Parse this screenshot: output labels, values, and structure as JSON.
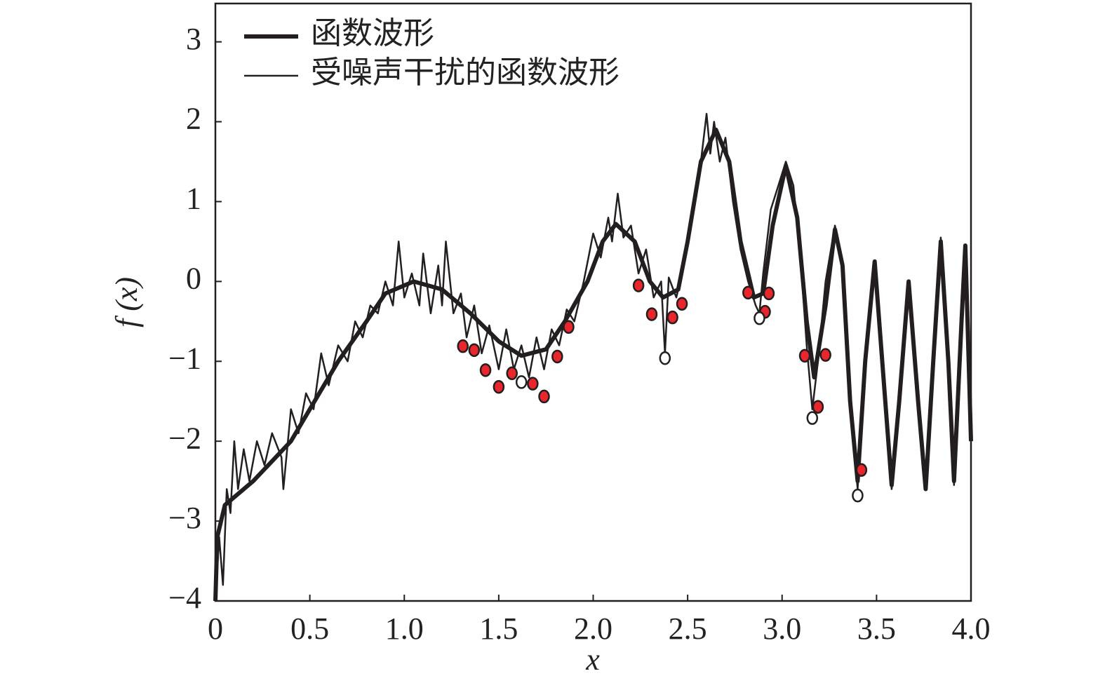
{
  "chart_data": {
    "type": "line",
    "xlabel": "x",
    "ylabel": "f (x)",
    "xlim": [
      0,
      4
    ],
    "ylim": [
      -4,
      3.48
    ],
    "xticks": [
      0,
      0.5,
      {
        "value": 1,
        "label": "1.0"
      },
      1.5,
      {
        "value": 2,
        "label": "2.0"
      },
      2.5,
      {
        "value": 3,
        "label": "3.0"
      },
      3.5,
      {
        "value": 4,
        "label": "4.0"
      }
    ],
    "yticks": [
      {
        "value": -4,
        "label": "−4"
      },
      {
        "value": -3,
        "label": "−3"
      },
      {
        "value": -2,
        "label": "−2"
      },
      {
        "value": -1,
        "label": "−1"
      },
      0,
      1,
      2,
      3
    ],
    "legend": "upper left",
    "series": [
      {
        "name": "函数波形",
        "color": "#231f20",
        "width": 6,
        "x": [
          0,
          0.01,
          0.05,
          0.2,
          0.4,
          0.5,
          0.65,
          0.8,
          0.9,
          1.05,
          1.2,
          1.35,
          1.5,
          1.62,
          1.75,
          1.85,
          1.97,
          2.05,
          2.12,
          2.22,
          2.3,
          2.37,
          2.45,
          2.5,
          2.57,
          2.65,
          2.72,
          2.78,
          2.85,
          2.9,
          2.95,
          3.02,
          3.08,
          3.13,
          3.17,
          3.23,
          3.28,
          3.32,
          3.36,
          3.4,
          3.44,
          3.49,
          3.53,
          3.58,
          3.62,
          3.67,
          3.72,
          3.76,
          3.8,
          3.84,
          3.88,
          3.91,
          3.95,
          3.97,
          4.0
        ],
        "values": [
          -4,
          -3.2,
          -2.8,
          -2.5,
          -2,
          -1.6,
          -1,
          -0.5,
          -0.15,
          0,
          -0.1,
          -0.4,
          -0.75,
          -0.93,
          -0.85,
          -0.5,
          0,
          0.5,
          0.72,
          0.5,
          0,
          -0.2,
          -0.1,
          0.5,
          1.5,
          1.9,
          1.5,
          0.5,
          -0.2,
          -0.15,
          0.7,
          1.45,
          0.8,
          -0.5,
          -1.2,
          -0.3,
          0.65,
          0.2,
          -1.5,
          -2.5,
          -1,
          0.25,
          -1,
          -2.55,
          -1.5,
          0,
          -1.5,
          -2.6,
          -1,
          0.5,
          -1,
          -2.5,
          -0.5,
          0.45,
          -2
        ]
      },
      {
        "name": "受噪声干扰的函数波形",
        "color": "#231f20",
        "width": 2.5,
        "x": [
          0,
          0.02,
          0.04,
          0.06,
          0.08,
          0.1,
          0.12,
          0.15,
          0.18,
          0.22,
          0.26,
          0.3,
          0.35,
          0.36,
          0.4,
          0.44,
          0.48,
          0.52,
          0.56,
          0.6,
          0.65,
          0.7,
          0.74,
          0.78,
          0.82,
          0.86,
          0.9,
          0.94,
          0.97,
          1.0,
          1.04,
          1.08,
          1.1,
          1.14,
          1.18,
          1.2,
          1.22,
          1.26,
          1.3,
          1.33,
          1.37,
          1.41,
          1.45,
          1.5,
          1.54,
          1.58,
          1.62,
          1.66,
          1.7,
          1.74,
          1.78,
          1.82,
          1.86,
          1.9,
          1.95,
          2.0,
          2.04,
          2.08,
          2.1,
          2.13,
          2.16,
          2.2,
          2.24,
          2.28,
          2.32,
          2.36,
          2.38,
          2.4,
          2.44,
          2.48,
          2.52,
          2.56,
          2.6,
          2.62,
          2.64,
          2.67,
          2.7,
          2.74,
          2.78,
          2.82,
          2.86,
          2.88,
          2.9,
          2.94,
          2.98,
          3.02,
          3.06,
          3.1,
          3.13,
          3.16,
          3.19,
          3.23,
          3.28,
          3.32,
          3.36,
          3.4,
          3.44,
          3.49,
          3.53,
          3.58,
          3.62,
          3.67,
          3.72,
          3.76,
          3.8,
          3.84,
          3.88,
          3.91,
          3.95,
          3.97,
          4.0
        ],
        "values": [
          -4,
          -3.2,
          -3.8,
          -2.6,
          -2.9,
          -2,
          -2.6,
          -2.1,
          -2.5,
          -2,
          -2.3,
          -1.9,
          -2.2,
          -2.6,
          -1.6,
          -1.9,
          -1.4,
          -1.6,
          -0.9,
          -1.3,
          -0.8,
          -1,
          -0.5,
          -0.7,
          -0.3,
          -0.4,
          0,
          -0.3,
          0.5,
          -0.2,
          0.1,
          -0.3,
          0.35,
          -0.4,
          0.2,
          -0.3,
          0.5,
          -0.4,
          -0.15,
          -0.7,
          -0.3,
          -0.9,
          -0.55,
          -1.1,
          -0.6,
          -1.1,
          -0.8,
          -1.2,
          -0.7,
          -1.1,
          -0.6,
          -0.8,
          -0.35,
          -0.5,
          0,
          0.6,
          0.3,
          0.8,
          0.5,
          1.1,
          0.55,
          0.7,
          0.1,
          0.4,
          -0.2,
          0,
          -0.9,
          0.05,
          -0.2,
          0.2,
          0.8,
          1.3,
          2.1,
          1.6,
          2,
          1.5,
          1.8,
          1,
          0.4,
          0,
          -0.3,
          -0.4,
          0.1,
          0.9,
          1.2,
          1.5,
          1.2,
          0.2,
          -0.8,
          -1.6,
          -1,
          0,
          0.7,
          0.2,
          -1.5,
          -2.6,
          -1,
          0.25,
          -1,
          -2.6,
          -1.5,
          0,
          -1.5,
          -2.6,
          -1,
          0.55,
          -1,
          -2.55,
          -0.5,
          0.45,
          -2
        ]
      }
    ],
    "points": [
      {
        "color": "#e8262b",
        "x": [
          1.31,
          1.37,
          1.43,
          1.5,
          1.57,
          1.68,
          1.74,
          1.81,
          1.87,
          2.24,
          2.31,
          2.42,
          2.47,
          2.82,
          2.91,
          2.93,
          3.12,
          3.19,
          3.23,
          3.42
        ],
        "values": [
          -0.81,
          -0.86,
          -1.11,
          -1.32,
          -1.15,
          -1.28,
          -1.44,
          -0.94,
          -0.57,
          -0.05,
          -0.41,
          -0.45,
          -0.28,
          -0.14,
          -0.38,
          -0.15,
          -0.93,
          -1.57,
          -0.92,
          -2.36
        ]
      },
      {
        "color": "#ffffff",
        "x": [
          1.62,
          2.38,
          2.88,
          3.16,
          3.4
        ],
        "values": [
          -1.26,
          -0.96,
          -0.46,
          -1.71,
          -2.68
        ]
      }
    ]
  }
}
